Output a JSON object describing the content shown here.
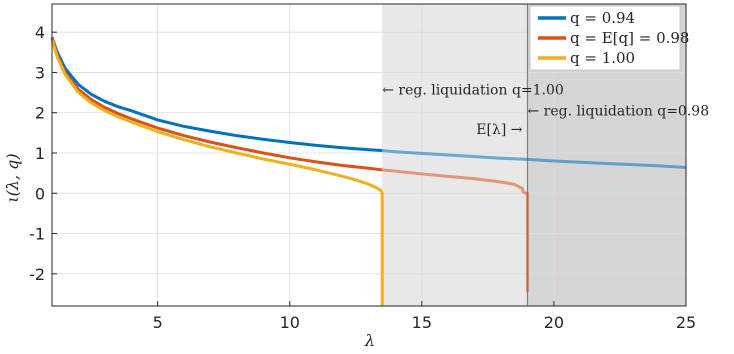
{
  "chart_data": {
    "type": "line",
    "xlabel": "λ",
    "ylabel": "ι(λ, q)",
    "xlim": [
      1,
      25
    ],
    "ylim": [
      -2.8,
      4.7
    ],
    "xticks": [
      5,
      10,
      15,
      20,
      25
    ],
    "yticks": [
      4,
      3,
      2,
      1,
      0,
      -1,
      -2
    ],
    "ytick_labels": [
      "4",
      "3",
      "2",
      "1",
      "0",
      "-1",
      "-2"
    ],
    "grid": true,
    "legend_position": "top-right",
    "shaded_regions": [
      {
        "from": 13.5,
        "to": 25,
        "color": "#e8e8e8"
      },
      {
        "from": 19.0,
        "to": 25,
        "color": "#d5d5d5"
      }
    ],
    "vertical_lines": [
      {
        "x": 19.0,
        "color": "#7f7f7f"
      }
    ],
    "series": [
      {
        "name": "q = 0.94",
        "color": "#0072bd",
        "x": [
          1.0,
          1.2,
          1.5,
          2.0,
          2.5,
          3.0,
          3.5,
          4.0,
          5.0,
          6.0,
          7.0,
          8.0,
          9.0,
          10.0,
          11.0,
          12.0,
          13.0,
          13.5,
          14.0,
          15.0,
          16.0,
          17.0,
          18.0,
          19.0,
          20.0,
          21.0,
          22.0,
          23.0,
          24.0,
          25.0
        ],
        "y": [
          3.87,
          3.5,
          3.1,
          2.7,
          2.45,
          2.28,
          2.15,
          2.05,
          1.82,
          1.66,
          1.54,
          1.43,
          1.34,
          1.26,
          1.19,
          1.13,
          1.08,
          1.06,
          1.03,
          0.99,
          0.95,
          0.91,
          0.87,
          0.84,
          0.8,
          0.77,
          0.74,
          0.71,
          0.68,
          0.64
        ],
        "faded_after": 13.5
      },
      {
        "name": "q = E[q] = 0.98",
        "color": "#d95319",
        "x": [
          1.0,
          1.2,
          1.5,
          2.0,
          2.5,
          3.0,
          3.5,
          4.0,
          5.0,
          6.0,
          7.0,
          8.0,
          9.0,
          10.0,
          11.0,
          12.0,
          13.0,
          13.5,
          14.0,
          15.0,
          16.0,
          17.0,
          18.0,
          18.5,
          18.8,
          18.85,
          18.95,
          19.0,
          19.0
        ],
        "y": [
          3.85,
          3.42,
          3.0,
          2.58,
          2.32,
          2.13,
          1.98,
          1.85,
          1.62,
          1.43,
          1.27,
          1.13,
          1.0,
          0.88,
          0.78,
          0.69,
          0.62,
          0.58,
          0.55,
          0.48,
          0.42,
          0.36,
          0.28,
          0.22,
          0.12,
          0.02,
          0.0,
          0.0,
          -2.45
        ],
        "faded_after": 13.5
      },
      {
        "name": "q = 1.00",
        "color": "#edb120",
        "x": [
          1.0,
          1.2,
          1.5,
          2.0,
          2.5,
          3.0,
          3.5,
          4.0,
          5.0,
          6.0,
          7.0,
          8.0,
          9.0,
          10.0,
          11.0,
          12.0,
          12.5,
          13.0,
          13.3,
          13.45,
          13.5,
          13.5
        ],
        "y": [
          3.82,
          3.38,
          2.95,
          2.5,
          2.24,
          2.05,
          1.9,
          1.77,
          1.53,
          1.33,
          1.15,
          1.0,
          0.85,
          0.72,
          0.58,
          0.42,
          0.33,
          0.22,
          0.13,
          0.07,
          0.0,
          -2.8
        ]
      }
    ],
    "annotations": [
      {
        "text": "← reg. liquidation q=1.00",
        "x": 13.5,
        "y": 2.58
      },
      {
        "text": "← reg. liquidation q=0.98",
        "x": 19.0,
        "y": 2.05
      },
      {
        "text": "E[λ] →",
        "x": 19.0,
        "y": 1.6
      }
    ]
  }
}
